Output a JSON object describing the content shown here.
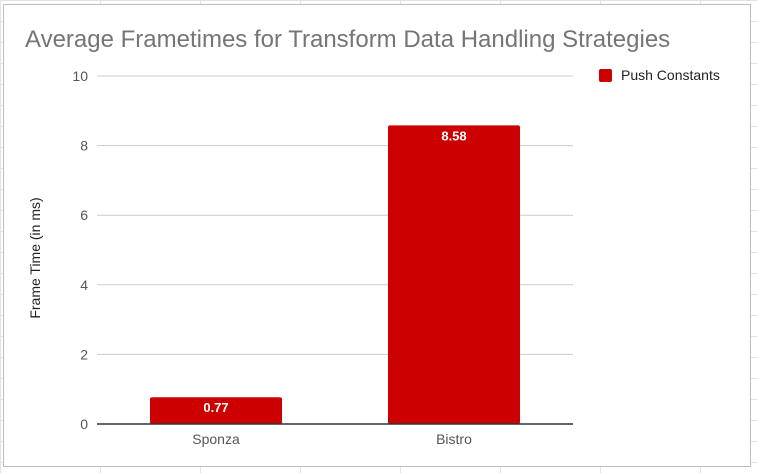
{
  "chart_data": {
    "type": "bar",
    "title": "Average Frametimes for Transform Data Handling Strategies",
    "xlabel": "",
    "ylabel": "Frame Time (in ms)",
    "categories": [
      "Sponza",
      "Bistro"
    ],
    "series": [
      {
        "name": "Push Constants",
        "values": [
          0.77,
          8.58
        ],
        "color": "#cc0000"
      }
    ],
    "data_labels": [
      "0.77",
      "8.58"
    ],
    "ylim": [
      0,
      10
    ],
    "yticks": [
      0,
      2,
      4,
      6,
      8,
      10
    ],
    "grid": true,
    "legend_position": "top-right"
  },
  "colors": {
    "bar": "#cc0000",
    "gridline": "#cccccc",
    "axis": "#333333",
    "title": "#757575",
    "tick": "#555555"
  }
}
